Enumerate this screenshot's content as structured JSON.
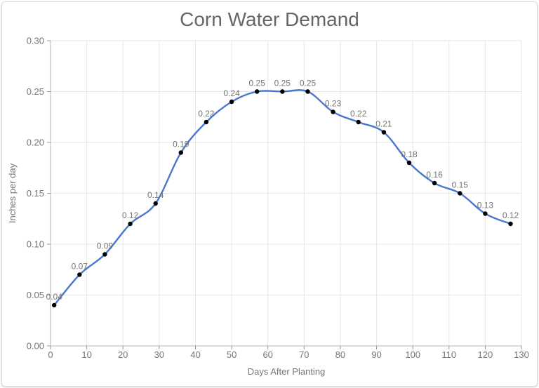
{
  "window": {
    "background": "#ffffff",
    "border_color": "#d9d9d9"
  },
  "chart_data": {
    "type": "line",
    "title": "Corn Water Demand",
    "xlabel": "Days After Planting",
    "ylabel": "Inches per day",
    "x": [
      1,
      8,
      15,
      22,
      29,
      36,
      43,
      50,
      57,
      64,
      71,
      78,
      85,
      92,
      99,
      106,
      113,
      120,
      127
    ],
    "values": [
      0.04,
      0.07,
      0.09,
      0.12,
      0.14,
      0.19,
      0.22,
      0.24,
      0.25,
      0.25,
      0.25,
      0.23,
      0.22,
      0.21,
      0.18,
      0.16,
      0.15,
      0.13,
      0.12
    ],
    "point_labels": [
      "0.04",
      "0.07",
      "0.09",
      "0.12",
      "0.14",
      "0.19",
      "0.22",
      "0.24",
      "0.25",
      "0.25",
      "0.25",
      "0.23",
      "0.22",
      "0.21",
      "0.18",
      "0.16",
      "0.15",
      "0.13",
      "0.12"
    ],
    "xlim": [
      0,
      130
    ],
    "ylim": [
      0,
      0.3
    ],
    "x_ticks": [
      0,
      10,
      20,
      30,
      40,
      50,
      60,
      70,
      80,
      90,
      100,
      110,
      120,
      130
    ],
    "y_ticks": [
      0,
      0.05,
      0.1,
      0.15,
      0.2,
      0.25,
      0.3
    ],
    "y_tick_labels": [
      "0.00",
      "0.05",
      "0.10",
      "0.15",
      "0.20",
      "0.25",
      "0.30"
    ],
    "grid": true,
    "smooth": true,
    "legend": "none",
    "marker": "black-dot",
    "colors": {
      "line": "#4878cc",
      "marker": "#000000",
      "grid": "#e6e6e6",
      "axis": "#b7b7b7",
      "tick": "#9a9a9a",
      "tick_text": "#757575",
      "title_text": "#666666",
      "point_label_text": "#757575"
    }
  }
}
